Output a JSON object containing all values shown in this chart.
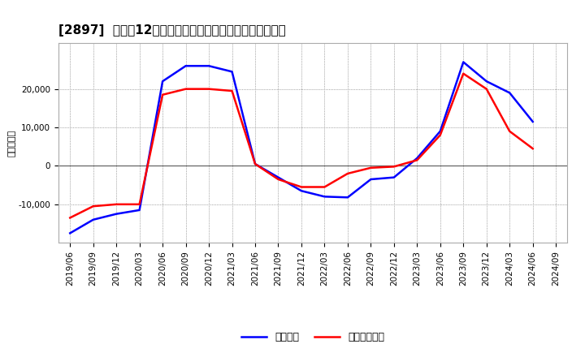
{
  "title": "[2897]  利益だ12か月移動合計の対前年同期増減額の推移",
  "ylabel": "（百万円）",
  "line_color_blue": "#0000FF",
  "line_color_red": "#FF0000",
  "background_color": "#FFFFFF",
  "plot_bg_color": "#FFFFFF",
  "grid_color": "#AAAAAA",
  "legend_blue": "経常利益",
  "legend_red": "当期経常利益",
  "x_labels": [
    "2019/06",
    "2019/09",
    "2019/12",
    "2020/03",
    "2020/06",
    "2020/09",
    "2020/12",
    "2021/03",
    "2021/06",
    "2021/09",
    "2021/12",
    "2022/03",
    "2022/06",
    "2022/09",
    "2022/12",
    "2023/03",
    "2023/06",
    "2023/09",
    "2023/12",
    "2024/03",
    "2024/06",
    "2024/09"
  ],
  "blue_values": [
    -17500,
    -14000,
    -12500,
    -11500,
    22000,
    26000,
    26000,
    24500,
    500,
    -3000,
    -6500,
    -8000,
    -8200,
    -3500,
    -3000,
    2000,
    9000,
    27000,
    22000,
    19000,
    11500,
    null
  ],
  "red_values": [
    -13500,
    -10500,
    -10000,
    -10000,
    18500,
    20000,
    20000,
    19500,
    500,
    -3500,
    -5500,
    -5500,
    -2000,
    -500,
    -200,
    1500,
    8000,
    24000,
    20000,
    9000,
    4500,
    null
  ],
  "ylim": [
    -20000,
    32000
  ],
  "yticks": [
    -10000,
    0,
    10000,
    20000
  ],
  "title_fontsize": 11,
  "tick_fontsize": 7.5,
  "legend_fontsize": 9,
  "ylabel_fontsize": 8
}
